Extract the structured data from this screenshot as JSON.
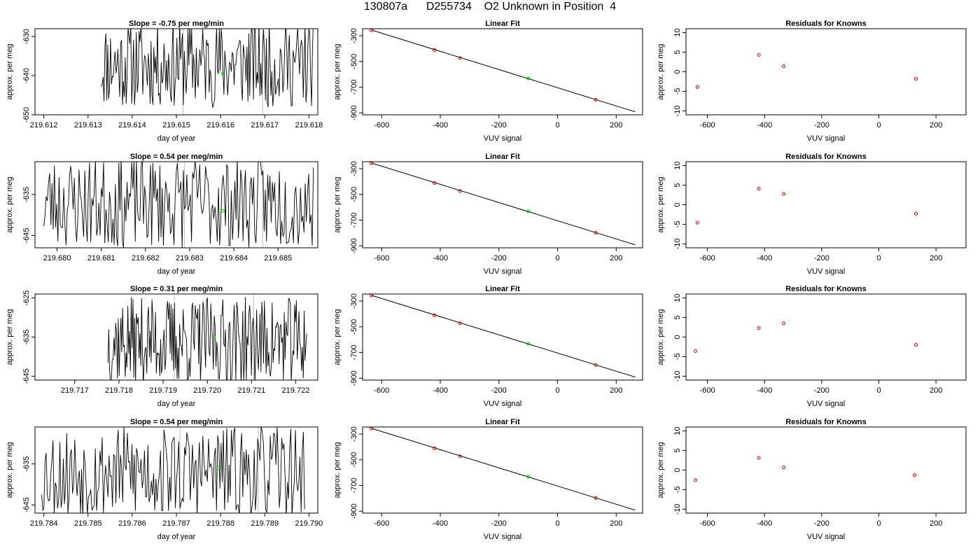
{
  "figure_title": "130807a      D255734    O2 Unknown in Position  4",
  "chart_data": [
    {
      "type": "line",
      "title": "Slope =  -0.75  per meg/min",
      "xlabel": "day of year",
      "ylabel": "approx. per meg",
      "xlim": [
        219.6118,
        219.6182
      ],
      "ylim": [
        -650,
        -628
      ],
      "xticks": [
        "219.612",
        "219.613",
        "219.614",
        "219.615",
        "219.616",
        "219.617",
        "219.618"
      ],
      "yticks": [
        "-650",
        "-640",
        "-630"
      ],
      "x_start": 219.6133,
      "x_end": 219.6181,
      "seed": 11,
      "mean": -637,
      "amp": 9,
      "vlines": [
        219.61515,
        219.61695
      ],
      "marker": {
        "x": 219.61605,
        "y": -639.5
      }
    },
    {
      "type": "scatter",
      "title": "Linear Fit",
      "xlabel": "VUV signal",
      "ylabel": "approx. per meg",
      "xlim": [
        -665,
        290
      ],
      "ylim": [
        -915,
        -245
      ],
      "xticks": [
        "-600",
        "-400",
        "-200",
        "0",
        "200"
      ],
      "yticks": [
        "-900",
        "-700",
        "-500",
        "-300"
      ],
      "fit": {
        "x": [
          -635,
          265
        ],
        "y": [
          -255,
          -892
        ]
      },
      "points": [
        {
          "x": -635,
          "y": -257
        },
        {
          "x": -420,
          "y": -411
        },
        {
          "x": -333,
          "y": -473
        },
        {
          "x": 130,
          "y": -798
        }
      ],
      "unknown": {
        "x": -100,
        "y": -631
      }
    },
    {
      "type": "scatter",
      "title": "Residuals for Knowns",
      "xlabel": "VUV signal",
      "ylabel": "approx. per meg",
      "xlim": [
        -675,
        305
      ],
      "ylim": [
        -11,
        11
      ],
      "xticks": [
        "-600",
        "-400",
        "-200",
        "0",
        "200"
      ],
      "yticks": [
        "-10",
        "-5",
        "0",
        "5",
        "10"
      ],
      "points": [
        {
          "x": -635,
          "y": -3.9
        },
        {
          "x": -420,
          "y": 4.3
        },
        {
          "x": -333,
          "y": 1.4
        },
        {
          "x": 130,
          "y": -1.8
        }
      ]
    },
    {
      "type": "line",
      "title": "Slope =  0.54  per meg/min",
      "xlabel": "day of year",
      "ylabel": "approx. per meg",
      "xlim": [
        219.6795,
        219.6859
      ],
      "ylim": [
        -648,
        -627
      ],
      "xticks": [
        "219.680",
        "219.681",
        "219.682",
        "219.683",
        "219.684",
        "219.685"
      ],
      "yticks": [
        "-645",
        "-635"
      ],
      "x_start": 219.6797,
      "x_end": 219.6858,
      "seed": 23,
      "mean": -637,
      "amp": 9,
      "vlines": [
        219.68288,
        219.68465
      ],
      "marker": {
        "x": 219.68375,
        "y": -639
      }
    },
    {
      "type": "scatter",
      "title": "Linear Fit",
      "xlabel": "VUV signal",
      "ylabel": "approx. per meg",
      "xlim": [
        -665,
        290
      ],
      "ylim": [
        -915,
        -245
      ],
      "xticks": [
        "-600",
        "-400",
        "-200",
        "0",
        "200"
      ],
      "yticks": [
        "-900",
        "-700",
        "-500",
        "-300"
      ],
      "fit": {
        "x": [
          -635,
          265
        ],
        "y": [
          -255,
          -892
        ]
      },
      "points": [
        {
          "x": -635,
          "y": -257
        },
        {
          "x": -420,
          "y": -411
        },
        {
          "x": -333,
          "y": -473
        },
        {
          "x": 130,
          "y": -798
        }
      ],
      "unknown": {
        "x": -100,
        "y": -631
      }
    },
    {
      "type": "scatter",
      "title": "Residuals for Knowns",
      "xlabel": "VUV signal",
      "ylabel": "approx. per meg",
      "xlim": [
        -675,
        305
      ],
      "ylim": [
        -11,
        11
      ],
      "xticks": [
        "-600",
        "-400",
        "-200",
        "0",
        "200"
      ],
      "yticks": [
        "-10",
        "-5",
        "0",
        "5",
        "10"
      ],
      "points": [
        {
          "x": -635,
          "y": -4.6
        },
        {
          "x": -420,
          "y": 4.1
        },
        {
          "x": -333,
          "y": 2.7
        },
        {
          "x": 130,
          "y": -2.3
        }
      ]
    },
    {
      "type": "line",
      "title": "Slope =  0.31  per meg/min",
      "xlabel": "day of year",
      "ylabel": "approx. per meg",
      "xlim": [
        219.7161,
        219.7225
      ],
      "ylim": [
        -646,
        -624
      ],
      "xticks": [
        "219.717",
        "219.718",
        "219.719",
        "219.720",
        "219.721",
        "219.722"
      ],
      "yticks": [
        "-645",
        "-635",
        "-625"
      ],
      "x_start": 219.71775,
      "x_end": 219.72225,
      "seed": 37,
      "mean": -636,
      "amp": 9,
      "vlines": [
        219.71925,
        219.72105
      ],
      "marker": {
        "x": 219.72015,
        "y": -635
      }
    },
    {
      "type": "scatter",
      "title": "Linear Fit",
      "xlabel": "VUV signal",
      "ylabel": "approx. per meg",
      "xlim": [
        -665,
        290
      ],
      "ylim": [
        -915,
        -245
      ],
      "xticks": [
        "-600",
        "-400",
        "-200",
        "0",
        "200"
      ],
      "yticks": [
        "-900",
        "-700",
        "-500",
        "-300"
      ],
      "fit": {
        "x": [
          -635,
          265
        ],
        "y": [
          -255,
          -892
        ]
      },
      "points": [
        {
          "x": -635,
          "y": -257
        },
        {
          "x": -420,
          "y": -411
        },
        {
          "x": -333,
          "y": -473
        },
        {
          "x": 130,
          "y": -798
        }
      ],
      "unknown": {
        "x": -100,
        "y": -631
      }
    },
    {
      "type": "scatter",
      "title": "Residuals for Knowns",
      "xlabel": "VUV signal",
      "ylabel": "approx. per meg",
      "xlim": [
        -675,
        305
      ],
      "ylim": [
        -11,
        11
      ],
      "xticks": [
        "-600",
        "-400",
        "-200",
        "0",
        "200"
      ],
      "yticks": [
        "-10",
        "-5",
        "0",
        "5",
        "10"
      ],
      "points": [
        {
          "x": -642,
          "y": -3.6
        },
        {
          "x": -420,
          "y": 2.3
        },
        {
          "x": -333,
          "y": 3.5
        },
        {
          "x": 130,
          "y": -2.0
        }
      ]
    },
    {
      "type": "line",
      "title": "Slope =  0.54  per meg/min",
      "xlabel": "day of year",
      "ylabel": "approx. per meg",
      "xlim": [
        219.7838,
        219.7902
      ],
      "ylim": [
        -647,
        -626
      ],
      "xticks": [
        "219.784",
        "219.785",
        "219.786",
        "219.787",
        "219.788",
        "219.789",
        "219.790"
      ],
      "yticks": [
        "-645",
        "-635"
      ],
      "x_start": 219.78395,
      "x_end": 219.7899,
      "seed": 53,
      "mean": -637,
      "amp": 9,
      "vlines": [
        219.78708,
        219.78885
      ],
      "marker": {
        "x": 219.78795,
        "y": -636
      }
    },
    {
      "type": "scatter",
      "title": "Linear Fit",
      "xlabel": "VUV signal",
      "ylabel": "approx. per meg",
      "xlim": [
        -665,
        290
      ],
      "ylim": [
        -915,
        -245
      ],
      "xticks": [
        "-600",
        "-400",
        "-200",
        "0",
        "200"
      ],
      "yticks": [
        "-900",
        "-700",
        "-500",
        "-300"
      ],
      "fit": {
        "x": [
          -635,
          265
        ],
        "y": [
          -255,
          -892
        ]
      },
      "points": [
        {
          "x": -635,
          "y": -257
        },
        {
          "x": -420,
          "y": -411
        },
        {
          "x": -333,
          "y": -473
        },
        {
          "x": 130,
          "y": -798
        }
      ],
      "unknown": {
        "x": -100,
        "y": -631
      }
    },
    {
      "type": "scatter",
      "title": "Residuals for Knowns",
      "xlabel": "VUV signal",
      "ylabel": "approx. per meg",
      "xlim": [
        -675,
        305
      ],
      "ylim": [
        -11,
        11
      ],
      "xticks": [
        "-600",
        "-400",
        "-200",
        "0",
        "200"
      ],
      "yticks": [
        "-10",
        "-5",
        "0",
        "5",
        "10"
      ],
      "points": [
        {
          "x": -642,
          "y": -2.6
        },
        {
          "x": -420,
          "y": 3.1
        },
        {
          "x": -333,
          "y": 0.7
        },
        {
          "x": 125,
          "y": -1.3
        }
      ]
    }
  ],
  "colors": {
    "series": "#000000",
    "known_point": "#cc0000",
    "unknown_point": "#00cc00",
    "vline": "#bbbbbb"
  }
}
